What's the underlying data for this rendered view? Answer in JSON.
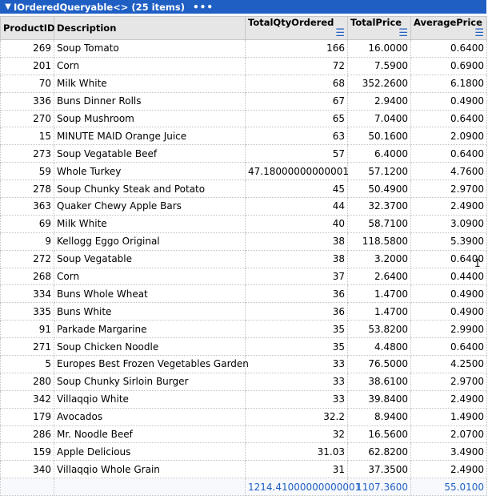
{
  "header": {
    "title": "IOrderedQueryable<> (25 items)",
    "collapse_icon": "chevron-down-icon",
    "more_icon": "ellipsis-icon"
  },
  "columns": [
    "ProductID",
    "Description",
    "TotalQtyOrdered",
    "TotalPrice",
    "AveragePrice"
  ],
  "rows": [
    {
      "id": "269",
      "desc": "Soup Tomato",
      "qty": "166",
      "price": "16.0000",
      "avg": "0.6400"
    },
    {
      "id": "201",
      "desc": "Corn",
      "qty": "72",
      "price": "7.5900",
      "avg": "0.6900"
    },
    {
      "id": "70",
      "desc": "Milk White",
      "qty": "68",
      "price": "352.2600",
      "avg": "6.1800"
    },
    {
      "id": "336",
      "desc": "Buns Dinner Rolls",
      "qty": "67",
      "price": "2.9400",
      "avg": "0.4900"
    },
    {
      "id": "270",
      "desc": "Soup Mushroom",
      "qty": "65",
      "price": "7.0400",
      "avg": "0.6400"
    },
    {
      "id": "15",
      "desc": "MINUTE MAID Orange Juice",
      "qty": "63",
      "price": "50.1600",
      "avg": "2.0900"
    },
    {
      "id": "273",
      "desc": "Soup Vegatable Beef",
      "qty": "57",
      "price": "6.4000",
      "avg": "0.6400"
    },
    {
      "id": "59",
      "desc": "Whole Turkey",
      "qty": "47.18000000000001",
      "price": "57.1200",
      "avg": "4.7600"
    },
    {
      "id": "278",
      "desc": "Soup Chunky Steak and Potato",
      "qty": "45",
      "price": "50.4900",
      "avg": "2.9700"
    },
    {
      "id": "363",
      "desc": "Quaker Chewy Apple Bars",
      "qty": "44",
      "price": "32.3700",
      "avg": "2.4900"
    },
    {
      "id": "69",
      "desc": "Milk White",
      "qty": "40",
      "price": "58.7100",
      "avg": "3.0900"
    },
    {
      "id": "9",
      "desc": "Kellogg Eggo Original",
      "qty": "38",
      "price": "118.5800",
      "avg": "5.3900"
    },
    {
      "id": "272",
      "desc": "Soup Vegatable",
      "qty": "38",
      "price": "3.2000",
      "avg": "0.6400"
    },
    {
      "id": "268",
      "desc": "Corn",
      "qty": "37",
      "price": "2.6400",
      "avg": "0.4400"
    },
    {
      "id": "334",
      "desc": "Buns Whole Wheat",
      "qty": "36",
      "price": "1.4700",
      "avg": "0.4900"
    },
    {
      "id": "335",
      "desc": "Buns White",
      "qty": "36",
      "price": "1.4700",
      "avg": "0.4900"
    },
    {
      "id": "91",
      "desc": "Parkade Margarine",
      "qty": "35",
      "price": "53.8200",
      "avg": "2.9900"
    },
    {
      "id": "271",
      "desc": "Soup Chicken Noodle",
      "qty": "35",
      "price": "4.4800",
      "avg": "0.6400"
    },
    {
      "id": "5",
      "desc": "Europes Best Frozen Vegetables Garden",
      "qty": "33",
      "price": "76.5000",
      "avg": "4.2500"
    },
    {
      "id": "280",
      "desc": "Soup Chunky Sirloin Burger",
      "qty": "33",
      "price": "38.6100",
      "avg": "2.9700"
    },
    {
      "id": "342",
      "desc": "Villaqqio White",
      "qty": "33",
      "price": "39.8400",
      "avg": "2.4900"
    },
    {
      "id": "179",
      "desc": "Avocados",
      "qty": "32.2",
      "price": "8.9400",
      "avg": "1.4900"
    },
    {
      "id": "286",
      "desc": "Mr. Noodle Beef",
      "qty": "32",
      "price": "16.5600",
      "avg": "2.0700"
    },
    {
      "id": "159",
      "desc": "Apple Delicious",
      "qty": "31.03",
      "price": "62.8200",
      "avg": "3.4900"
    },
    {
      "id": "340",
      "desc": "Villaqqio Whole Grain",
      "qty": "31",
      "price": "37.3500",
      "avg": "2.4900"
    }
  ],
  "totals": {
    "qty": "1214.41000000000001",
    "price": "1107.3600",
    "avg": "55.0100"
  },
  "colors": {
    "header_bg": "#1f5fc4",
    "total_text": "#1f5fc4"
  }
}
